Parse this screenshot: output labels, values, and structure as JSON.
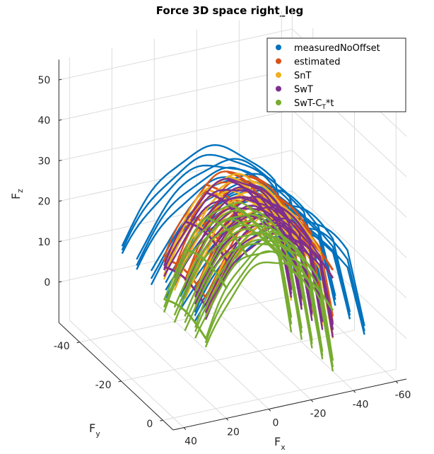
{
  "chart_data": {
    "type": "line",
    "projection": "3d",
    "title": "Force 3D space right_leg",
    "xlabel": "F",
    "xlabel_sub": "x",
    "ylabel": "F",
    "ylabel_sub": "y",
    "zlabel": "F",
    "zlabel_sub": "z",
    "x_ticks": [
      "40",
      "20",
      "0",
      "-20",
      "-40",
      "-60"
    ],
    "y_ticks": [
      "-40",
      "-20",
      "0"
    ],
    "z_ticks": [
      "0",
      "10",
      "20",
      "30",
      "40",
      "50"
    ],
    "xlim": [
      -65,
      45
    ],
    "ylim": [
      -50,
      5
    ],
    "zlim": [
      -10,
      55
    ],
    "grid": true,
    "legend_position": "top-right",
    "series": [
      {
        "name": "measuredNoOffset",
        "color": "#0072BD",
        "apex_z": 31,
        "base_z": 12,
        "y_range": [
          -40,
          -5
        ],
        "x_range": [
          -55,
          25
        ]
      },
      {
        "name": "estimated",
        "color": "#D95319",
        "apex_z": 30,
        "base_z": 12,
        "y_range": [
          -30,
          -10
        ],
        "x_range": [
          -45,
          15
        ]
      },
      {
        "name": "SnT",
        "color": "#EDB120",
        "apex_z": 29,
        "base_z": 10,
        "y_range": [
          -30,
          -10
        ],
        "x_range": [
          -45,
          15
        ]
      },
      {
        "name": "SwT",
        "color": "#7E2F8E",
        "apex_z": 28,
        "base_z": 10,
        "y_range": [
          -30,
          -10
        ],
        "x_range": [
          -45,
          15
        ]
      },
      {
        "name": "SwT-C",
        "name_sub": "T",
        "name_suffix": "*t",
        "color": "#77AC30",
        "apex_z": 22,
        "base_z": 2,
        "y_range": [
          -30,
          -10
        ],
        "x_range": [
          -45,
          15
        ]
      }
    ]
  }
}
